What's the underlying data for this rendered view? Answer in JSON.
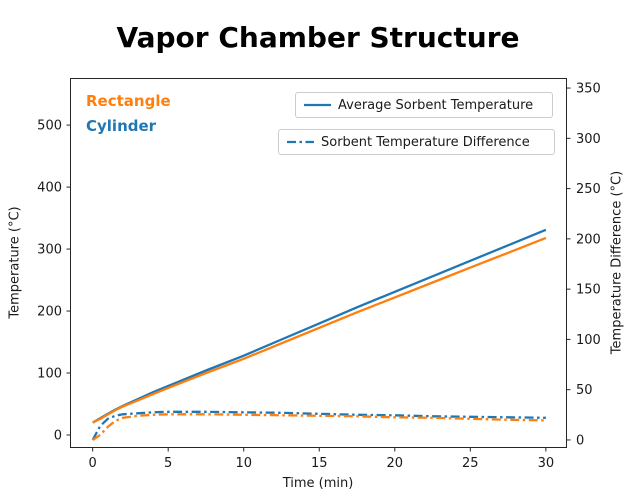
{
  "chart_data": {
    "type": "line",
    "title": "Vapor Chamber Structure",
    "xlabel": "Time (min)",
    "ylabel_left": "Temperature (°C)",
    "ylabel_right": "Temperature Difference (°C)",
    "xlim": [
      -1.5,
      31.4
    ],
    "ylim_left": [
      -21,
      576
    ],
    "ylim_right": [
      -8,
      360
    ],
    "xticks": [
      0,
      5,
      10,
      15,
      20,
      25,
      30
    ],
    "yticks_left": [
      0,
      100,
      200,
      300,
      400,
      500
    ],
    "yticks_right": [
      0,
      50,
      100,
      150,
      200,
      250,
      300,
      350
    ],
    "grid": false,
    "legend_position": "upper center, two stacked boxes",
    "colors": {
      "cylinder_blue": "#1f77b4",
      "rectangle_orange": "#ff7f0e",
      "axis": "#262626"
    },
    "annotations": [
      {
        "text": "Rectangle",
        "color": "#ff7f0e"
      },
      {
        "text": "Cylinder",
        "color": "#1f77b4"
      }
    ],
    "legends": [
      {
        "label": "Average Sorbent Temperature",
        "line_style": "solid",
        "line_color": "#1f77b4"
      },
      {
        "label": "Sorbent Temperature Difference",
        "line_style": "dashdot",
        "line_color": "#1f77b4"
      }
    ],
    "x": [
      0,
      0.5,
      1,
      1.5,
      2,
      3,
      4,
      5,
      7.5,
      10,
      12.5,
      15,
      17.5,
      20,
      22.5,
      25,
      27.5,
      30
    ],
    "series": [
      {
        "id": "cylinder-avg-temp",
        "name": "Cylinder — Average Sorbent Temperature",
        "axis": "left",
        "color": "#1f77b4",
        "style": "solid",
        "values": [
          20,
          27,
          34,
          41,
          47,
          58,
          69,
          79,
          104,
          128,
          154,
          180,
          206,
          231,
          256,
          281,
          306,
          331
        ]
      },
      {
        "id": "rectangle-avg-temp",
        "name": "Rectangle — Average Sorbent Temperature",
        "axis": "left",
        "color": "#ff7f0e",
        "style": "solid",
        "values": [
          20,
          26,
          33,
          40,
          46,
          56,
          66,
          76,
          100,
          123,
          148,
          173,
          198,
          222,
          246,
          270,
          294,
          318
        ]
      },
      {
        "id": "cylinder-temp-diff",
        "name": "Cylinder — Sorbent Temperature Difference",
        "axis": "right",
        "color": "#1f77b4",
        "style": "dashdot",
        "values": [
          0,
          14,
          21,
          24,
          25.5,
          26.5,
          27.5,
          28,
          28,
          27.5,
          27,
          26,
          25,
          24.5,
          23.5,
          23,
          22.5,
          22
        ]
      },
      {
        "id": "rectangle-temp-diff",
        "name": "Rectangle — Sorbent Temperature Difference",
        "axis": "right",
        "color": "#ff7f0e",
        "style": "dashdot",
        "values": [
          0,
          5,
          13,
          19,
          22,
          24,
          25,
          25.5,
          25.5,
          25,
          24.5,
          24,
          23.5,
          22.5,
          22,
          21,
          20,
          19.5
        ]
      }
    ]
  }
}
